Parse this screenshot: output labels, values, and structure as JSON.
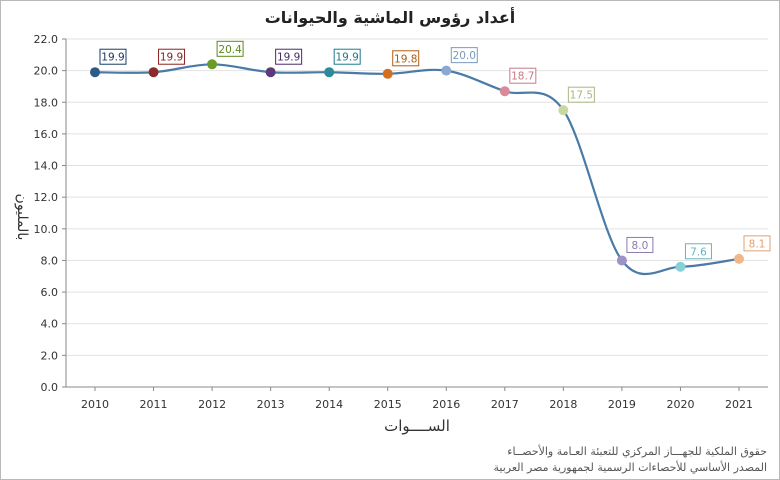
{
  "chart_data": {
    "type": "line",
    "title": "أعداد رؤوس الماشية والحيوانات",
    "xlabel": "الســــوات",
    "ylabel": "بالمليون",
    "categories": [
      "2010",
      "2011",
      "2012",
      "2013",
      "2014",
      "2015",
      "2016",
      "2017",
      "2018",
      "2019",
      "2020",
      "2021"
    ],
    "series": [
      {
        "values": [
          19.9,
          19.9,
          20.4,
          19.9,
          19.9,
          19.8,
          20.0,
          18.7,
          17.5,
          8.0,
          7.6,
          8.1
        ]
      }
    ],
    "data_labels": [
      "19.9",
      "19.9",
      "20.4",
      "19.9",
      "19.9",
      "19.8",
      "20.0",
      "18.7",
      "17.5",
      "8.0",
      "7.6",
      "8.1"
    ],
    "yticks": [
      "0.0",
      "2.0",
      "4.0",
      "6.0",
      "8.0",
      "10.0",
      "12.0",
      "14.0",
      "16.0",
      "18.0",
      "20.0",
      "22.0"
    ],
    "ylim": [
      0,
      22
    ],
    "grid": "horizontal",
    "line_color": "#4a7aa8",
    "point_colors": [
      "#2e5a87",
      "#8b2b2b",
      "#6a9a2a",
      "#5a3a78",
      "#2d8a9a",
      "#d07020",
      "#8aa8d0",
      "#d88a98",
      "#c8d8a0",
      "#a090c8",
      "#88d0d8",
      "#f0b888"
    ],
    "label_colors": [
      "#1a3a66",
      "#8b2020",
      "#5a8a1a",
      "#4a2a68",
      "#1d7a8a",
      "#b05a10",
      "#7a98c0",
      "#c87a88",
      "#a8b880",
      "#8a7ab0",
      "#68b0c0",
      "#e0a070"
    ]
  },
  "footer": {
    "line1": "حقوق الملكية للجهـــاز المركزي للتعبئة العـامة والأحصــاء",
    "line2": "المصدر الأساسي للأحصاءات الرسمية لجمهورية مصر العربية"
  }
}
